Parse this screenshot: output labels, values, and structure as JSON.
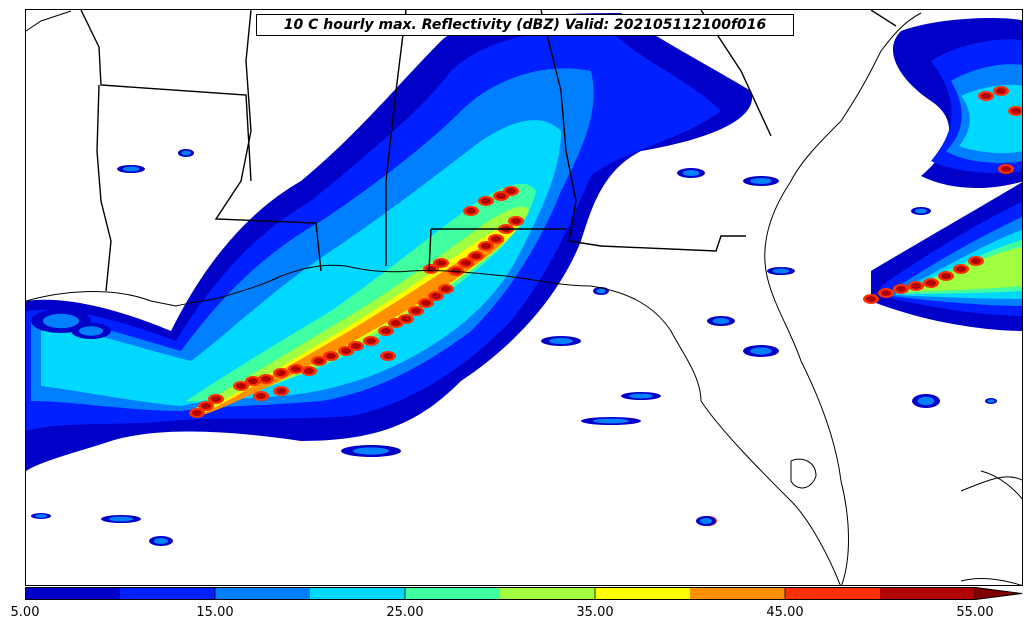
{
  "title": "10 C hourly max. Reflectivity (dBZ) Valid: 202105112100f016",
  "colorbar": {
    "levels": [
      5,
      10,
      15,
      20,
      25,
      30,
      35,
      40,
      45,
      50,
      55
    ],
    "colors": [
      "#0000c8",
      "#0020ff",
      "#0080ff",
      "#00d8ff",
      "#40ffa0",
      "#a0ff40",
      "#ffff00",
      "#ff9000",
      "#ff3000",
      "#b00000"
    ],
    "extend_color": "#800000",
    "extend": "max",
    "tick_labels": [
      "5.00",
      "15.00",
      "25.00",
      "35.00",
      "45.00",
      "55.00"
    ],
    "tick_values": [
      5,
      15,
      25,
      35,
      45,
      55
    ]
  },
  "map_features": [
    "coastlines",
    "state-borders"
  ]
}
